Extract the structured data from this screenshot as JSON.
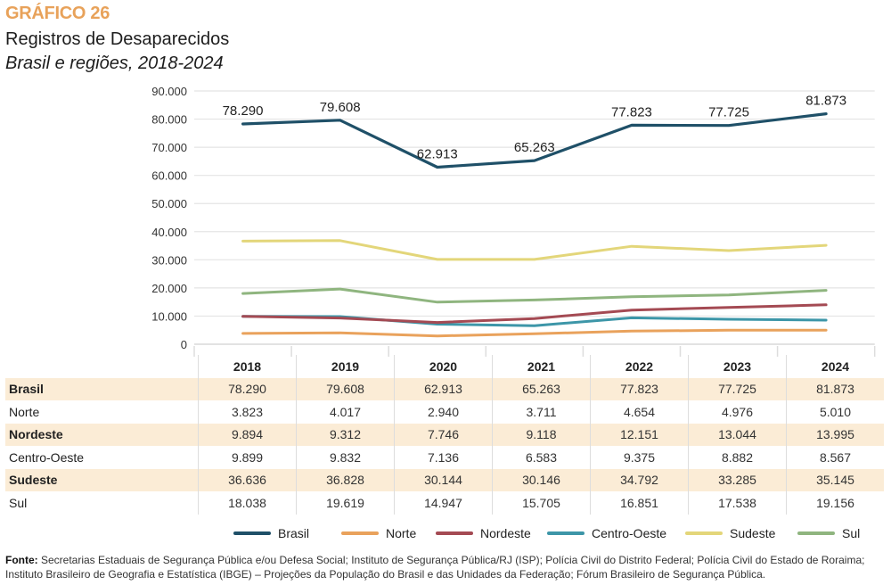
{
  "header": {
    "label": "GRÁFICO 26",
    "title": "Registros de Desaparecidos",
    "subtitle": "Brasil e regiões, 2018-2024"
  },
  "chart_data": {
    "type": "line",
    "title": "Registros de Desaparecidos",
    "subtitle": "Brasil e regiões, 2018-2024",
    "xlabel": "",
    "ylabel": "",
    "categories": [
      "2018",
      "2019",
      "2020",
      "2021",
      "2022",
      "2023",
      "2024"
    ],
    "ylim": [
      0,
      90000
    ],
    "yticks": [
      0,
      10000,
      20000,
      30000,
      40000,
      50000,
      60000,
      70000,
      80000,
      90000
    ],
    "ytick_labels": [
      "0",
      "10.000",
      "20.000",
      "30.000",
      "40.000",
      "50.000",
      "60.000",
      "70.000",
      "80.000",
      "90.000"
    ],
    "grid": true,
    "legend_position": "bottom",
    "data_labels_series": "Brasil",
    "series": [
      {
        "name": "Brasil",
        "color": "#1f5068",
        "values": [
          78290,
          79608,
          62913,
          65263,
          77823,
          77725,
          81873
        ],
        "labels": [
          "78.290",
          "79.608",
          "62.913",
          "65.263",
          "77.823",
          "77.725",
          "81.873"
        ]
      },
      {
        "name": "Norte",
        "color": "#e9a25c",
        "values": [
          3823,
          4017,
          2940,
          3711,
          4654,
          4976,
          5010
        ],
        "labels": [
          "3.823",
          "4.017",
          "2.940",
          "3.711",
          "4.654",
          "4.976",
          "5.010"
        ]
      },
      {
        "name": "Nordeste",
        "color": "#a44a53",
        "values": [
          9894,
          9312,
          7746,
          9118,
          12151,
          13044,
          13995
        ],
        "labels": [
          "9.894",
          "9.312",
          "7.746",
          "9.118",
          "12.151",
          "13.044",
          "13.995"
        ]
      },
      {
        "name": "Centro-Oeste",
        "color": "#3d96a8",
        "values": [
          9899,
          9832,
          7136,
          6583,
          9375,
          8882,
          8567
        ],
        "labels": [
          "9.899",
          "9.832",
          "7.136",
          "6.583",
          "9.375",
          "8.882",
          "8.567"
        ]
      },
      {
        "name": "Sudeste",
        "color": "#e3d67a",
        "values": [
          36636,
          36828,
          30144,
          30146,
          34792,
          33285,
          35145
        ],
        "labels": [
          "36.636",
          "36.828",
          "30.144",
          "30.146",
          "34.792",
          "33.285",
          "35.145"
        ]
      },
      {
        "name": "Sul",
        "color": "#8fb57f",
        "values": [
          18038,
          19619,
          14947,
          15705,
          16851,
          17538,
          19156
        ],
        "labels": [
          "18.038",
          "19.619",
          "14.947",
          "15.705",
          "16.851",
          "17.538",
          "19.156"
        ]
      }
    ]
  },
  "table": {
    "years": [
      "2018",
      "2019",
      "2020",
      "2021",
      "2022",
      "2023",
      "2024"
    ],
    "rows": [
      {
        "label": "Brasil",
        "values": [
          "78.290",
          "79.608",
          "62.913",
          "65.263",
          "77.823",
          "77.725",
          "81.873"
        ]
      },
      {
        "label": "Norte",
        "values": [
          "3.823",
          "4.017",
          "2.940",
          "3.711",
          "4.654",
          "4.976",
          "5.010"
        ]
      },
      {
        "label": "Nordeste",
        "values": [
          "9.894",
          "9.312",
          "7.746",
          "9.118",
          "12.151",
          "13.044",
          "13.995"
        ]
      },
      {
        "label": "Centro-Oeste",
        "values": [
          "9.899",
          "9.832",
          "7.136",
          "6.583",
          "9.375",
          "8.882",
          "8.567"
        ]
      },
      {
        "label": "Sudeste",
        "values": [
          "36.636",
          "36.828",
          "30.144",
          "30.146",
          "34.792",
          "33.285",
          "35.145"
        ]
      },
      {
        "label": "Sul",
        "values": [
          "18.038",
          "19.619",
          "14.947",
          "15.705",
          "16.851",
          "17.538",
          "19.156"
        ]
      }
    ]
  },
  "footer": {
    "source_label": "Fonte:",
    "source_text": " Secretarias Estaduais de Segurança Pública e/ou Defesa Social; Instituto de Segurança Pública/RJ (ISP); Polícia Civil do Distrito Federal; Polícia Civil do Estado de Roraima; Instituto Brasileiro de Geografia e Estatística (IBGE) – Projeções da População do Brasil e das Unidades da Federação; Fórum Brasileiro de Segurança Pública."
  }
}
